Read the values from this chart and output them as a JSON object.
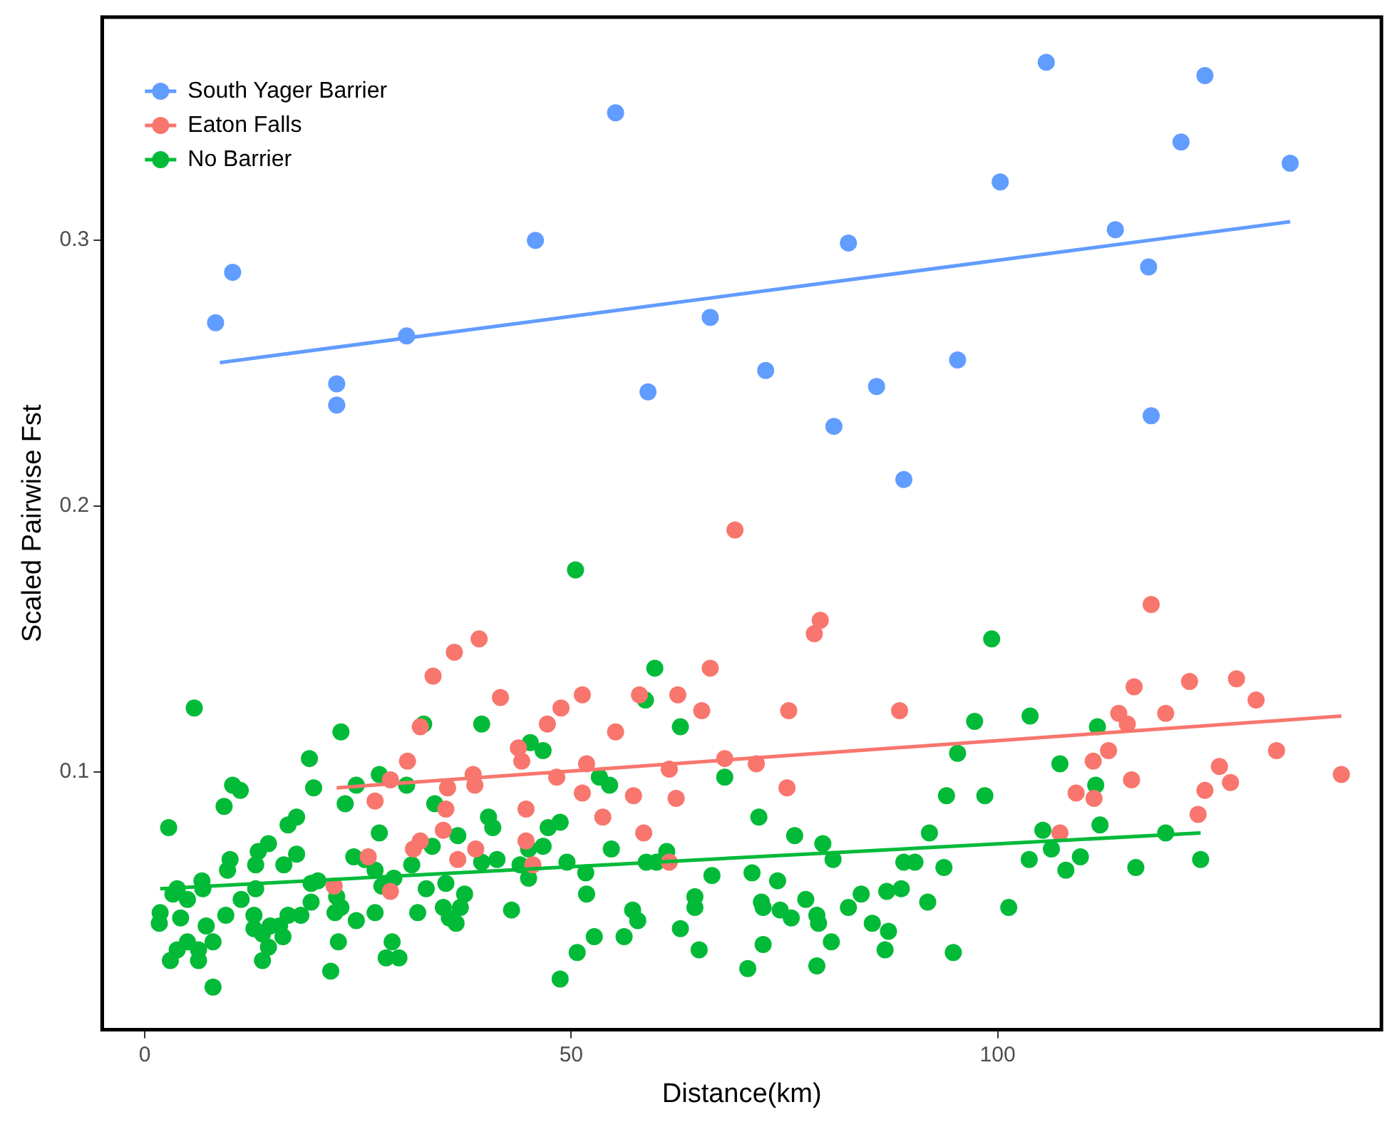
{
  "chart_data": {
    "type": "scatter",
    "xlabel": "Distance(km)",
    "ylabel": "Scaled Pairwise Fst",
    "xlim": [
      -5,
      145
    ],
    "ylim": [
      0.003,
      0.384
    ],
    "xticks": [
      0,
      50,
      100
    ],
    "yticks": [
      0.1,
      0.2,
      0.3
    ],
    "grid": false,
    "legend": "top left",
    "marker": "circle",
    "series": [
      {
        "name": "South Yager Barrier",
        "color": "#619cff",
        "x": [
          8.3,
          10.3,
          22.5,
          22.5,
          30.7,
          45.8,
          55.2,
          59,
          66.3,
          72.8,
          80.8,
          82.5,
          85.8,
          89,
          95.3,
          100.3,
          105.7,
          113.8,
          117.7,
          118,
          121.5,
          124.3,
          134.3
        ],
        "values": [
          0.269,
          0.288,
          0.246,
          0.238,
          0.264,
          0.3,
          0.348,
          0.243,
          0.271,
          0.251,
          0.23,
          0.299,
          0.245,
          0.21,
          0.255,
          0.322,
          0.367,
          0.304,
          0.29,
          0.234,
          0.337,
          0.362,
          0.329
        ]
      },
      {
        "name": "Eaton Falls",
        "color": "#f8766d",
        "x": [
          39.2,
          36.3,
          33.8,
          41.7,
          48.8,
          47.2,
          32.3,
          43.8,
          44.2,
          30.8,
          28.8,
          35.5,
          38.7,
          38.5,
          48.3,
          27.0,
          35.3,
          35.0,
          44.7,
          44.7,
          32.3,
          31.5,
          38.8,
          36.7,
          26.2,
          45.5,
          22.2,
          28.8,
          51.3,
          58.0,
          62.5,
          66.3,
          75.5,
          88.5,
          55.2,
          65.3,
          69.2,
          79.2,
          78.5,
          68.0,
          71.7,
          61.5,
          51.8,
          51.3,
          57.3,
          62.3,
          75.3,
          53.7,
          58.5,
          61.5,
          118.0,
          116.0,
          122.5,
          128.0,
          130.3,
          114.2,
          115.2,
          119.7,
          113.0,
          111.2,
          132.7,
          126.0,
          140.3,
          115.7,
          127.3,
          109.2,
          111.3,
          124.3,
          123.5,
          107.3
        ],
        "values": [
          0.15,
          0.145,
          0.136,
          0.128,
          0.124,
          0.118,
          0.117,
          0.109,
          0.104,
          0.104,
          0.097,
          0.094,
          0.095,
          0.099,
          0.098,
          0.089,
          0.086,
          0.078,
          0.086,
          0.074,
          0.074,
          0.071,
          0.071,
          0.067,
          0.068,
          0.065,
          0.057,
          0.055,
          0.129,
          0.129,
          0.129,
          0.139,
          0.123,
          0.123,
          0.115,
          0.123,
          0.191,
          0.157,
          0.152,
          0.105,
          0.103,
          0.101,
          0.103,
          0.092,
          0.091,
          0.09,
          0.094,
          0.083,
          0.077,
          0.066,
          0.163,
          0.132,
          0.134,
          0.135,
          0.127,
          0.122,
          0.118,
          0.122,
          0.108,
          0.104,
          0.108,
          0.102,
          0.099,
          0.097,
          0.096,
          0.092,
          0.09,
          0.093,
          0.084,
          0.077
        ]
      },
      {
        "name": "No Barrier",
        "color": "#00ba38",
        "x": [
          5.8,
          2.8,
          23.0,
          19.3,
          19.8,
          10.3,
          11.2,
          9.3,
          23.5,
          24.8,
          27.5,
          30.7,
          32.7,
          39.5,
          45.2,
          46.7,
          34.0,
          40.3,
          40.8,
          47.3,
          48.7,
          27.5,
          36.7,
          33.7,
          31.3,
          39.5,
          41.3,
          44.0,
          45.0,
          46.7,
          45.0,
          17.8,
          16.8,
          14.5,
          13.3,
          17.8,
          16.3,
          10.0,
          9.7,
          13.0,
          24.5,
          25.8,
          27.0,
          29.2,
          27.8,
          33.0,
          35.3,
          37.5,
          37.0,
          35.0,
          35.7,
          36.5,
          43.0,
          32.0,
          27.0,
          24.8,
          22.5,
          23.0,
          22.3,
          19.5,
          18.3,
          16.8,
          13.0,
          11.3,
          9.5,
          6.7,
          6.8,
          3.8,
          3.3,
          5.0,
          1.8,
          1.7,
          4.2,
          7.2,
          8.0,
          5.0,
          3.8,
          6.3,
          3.0,
          6.3,
          12.8,
          12.8,
          13.8,
          14.7,
          16.2,
          14.5,
          13.8,
          15.8,
          8.0,
          21.8,
          22.7,
          29.0,
          28.3,
          29.8,
          48.7,
          19.5,
          20.3,
          50.5,
          59.8,
          58.7,
          62.8,
          53.3,
          54.5,
          68.0,
          95.3,
          72.0,
          76.2,
          79.5,
          80.7,
          94.0,
          92.0,
          93.7,
          89.0,
          90.3,
          49.5,
          51.7,
          54.7,
          58.8,
          60.0,
          61.2,
          66.5,
          71.2,
          74.2,
          51.8,
          57.2,
          57.8,
          64.5,
          64.5,
          72.3,
          72.5,
          74.5,
          75.8,
          77.5,
          78.8,
          79.0,
          82.5,
          84.0,
          87.0,
          88.7,
          91.8,
          85.3,
          87.2,
          86.8,
          80.5,
          78.8,
          72.5,
          70.7,
          65.0,
          62.8,
          56.2,
          52.7,
          50.7,
          94.8,
          99.3,
          97.3,
          103.8,
          111.7,
          107.3,
          98.5,
          111.5,
          105.3,
          112.0,
          119.7,
          106.3,
          109.7,
          103.7,
          108.0,
          116.2,
          123.8,
          101.3
        ],
        "values": [
          0.124,
          0.079,
          0.115,
          0.105,
          0.094,
          0.095,
          0.093,
          0.087,
          0.088,
          0.095,
          0.099,
          0.095,
          0.118,
          0.118,
          0.111,
          0.108,
          0.088,
          0.083,
          0.079,
          0.079,
          0.081,
          0.077,
          0.076,
          0.072,
          0.065,
          0.066,
          0.067,
          0.065,
          0.071,
          0.072,
          0.06,
          0.083,
          0.08,
          0.073,
          0.07,
          0.069,
          0.065,
          0.067,
          0.063,
          0.065,
          0.068,
          0.067,
          0.063,
          0.06,
          0.057,
          0.056,
          0.058,
          0.054,
          0.049,
          0.049,
          0.045,
          0.043,
          0.048,
          0.047,
          0.047,
          0.044,
          0.053,
          0.049,
          0.047,
          0.051,
          0.046,
          0.046,
          0.056,
          0.052,
          0.046,
          0.059,
          0.056,
          0.056,
          0.054,
          0.052,
          0.047,
          0.043,
          0.045,
          0.042,
          0.036,
          0.036,
          0.033,
          0.033,
          0.029,
          0.029,
          0.046,
          0.041,
          0.039,
          0.042,
          0.038,
          0.034,
          0.029,
          0.042,
          0.019,
          0.025,
          0.036,
          0.036,
          0.03,
          0.03,
          0.022,
          0.058,
          0.059,
          0.176,
          0.139,
          0.127,
          0.117,
          0.098,
          0.095,
          0.098,
          0.107,
          0.083,
          0.076,
          0.073,
          0.067,
          0.091,
          0.077,
          0.064,
          0.066,
          0.066,
          0.066,
          0.062,
          0.071,
          0.066,
          0.066,
          0.07,
          0.061,
          0.062,
          0.059,
          0.054,
          0.048,
          0.044,
          0.053,
          0.049,
          0.051,
          0.049,
          0.048,
          0.045,
          0.052,
          0.046,
          0.043,
          0.049,
          0.054,
          0.055,
          0.056,
          0.051,
          0.043,
          0.04,
          0.033,
          0.036,
          0.027,
          0.035,
          0.026,
          0.033,
          0.041,
          0.038,
          0.038,
          0.032,
          0.032,
          0.15,
          0.119,
          0.121,
          0.117,
          0.103,
          0.091,
          0.095,
          0.078,
          0.08,
          0.077,
          0.071,
          0.068,
          0.067,
          0.063,
          0.064,
          0.067,
          0.049
        ]
      },
      {
        "type": "line",
        "marker": "none",
        "color": "#619cff",
        "x": [
          8.8,
          134.3
        ],
        "values": [
          0.254,
          0.307
        ]
      },
      {
        "type": "line",
        "marker": "none",
        "color": "#f8766d",
        "x": [
          22.5,
          140.3
        ],
        "values": [
          0.094,
          0.121
        ]
      },
      {
        "type": "line",
        "marker": "none",
        "color": "#00ba38",
        "x": [
          1.8,
          123.8
        ],
        "values": [
          0.056,
          0.077
        ]
      }
    ]
  }
}
